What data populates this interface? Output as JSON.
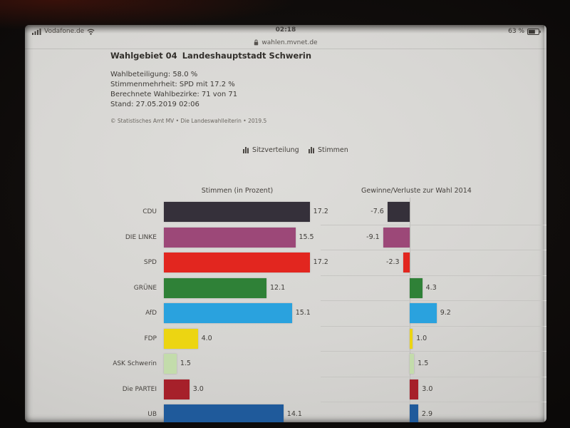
{
  "status_bar": {
    "carrier": "Vodafone.de",
    "time": "02:18",
    "battery_percent": "63 %"
  },
  "url_bar": {
    "url": "wahlen.mvnet.de"
  },
  "header": {
    "region_label": "Wahlgebiet 04",
    "region_name": "Landeshauptstadt Schwerin",
    "info_lines": [
      "Wahlbeteiligung: 58.0 %",
      "Stimmenmehrheit: SPD mit 17.2 %",
      "Berechnete Wahlbezirke: 71 von 71",
      "Stand: 27.05.2019 02:06"
    ],
    "copyright": "© Statistisches Amt MV • Die Landeswahlleiterin • 2019.5"
  },
  "toggles": {
    "seats_label": "Sitzverteilung",
    "votes_label": "Stimmen"
  },
  "chart_data": {
    "type": "bar",
    "title_left": "Stimmen (in Prozent)",
    "title_right": "Gewinne/Verluste zur Wahl 2014",
    "unit": "percent",
    "rows": [
      {
        "party": "CDU",
        "percent": 17.2,
        "diff": -7.6,
        "color": "#35303a"
      },
      {
        "party": "DIE LINKE",
        "percent": 15.5,
        "diff": -9.1,
        "color": "#9c4878"
      },
      {
        "party": "SPD",
        "percent": 17.2,
        "diff": -2.3,
        "color": "#e2261f"
      },
      {
        "party": "GRÜNE",
        "percent": 12.1,
        "diff": 4.3,
        "color": "#2f8137"
      },
      {
        "party": "AfD",
        "percent": 15.1,
        "diff": 9.2,
        "color": "#2aa2de"
      },
      {
        "party": "FDP",
        "percent": 4.0,
        "diff": 1.0,
        "color": "#ecd512"
      },
      {
        "party": "ASK Schwerin",
        "percent": 1.5,
        "diff": 1.5,
        "color": "#c3dcab"
      },
      {
        "party": "Die PARTEI",
        "percent": 3.0,
        "diff": 3.0,
        "color": "#a6202a"
      },
      {
        "party": "UB",
        "percent": 14.1,
        "diff": 2.9,
        "color": "#1f5a9b"
      }
    ]
  }
}
